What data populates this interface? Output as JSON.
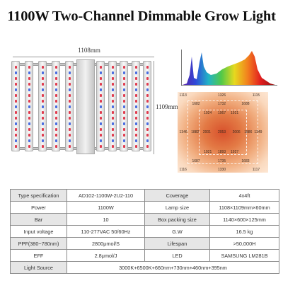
{
  "title": "1100W Two-Channel Dimmable Grow Light",
  "fixture": {
    "width_label": "1108mm",
    "height_label": "1109mm",
    "bar_count": 10
  },
  "spectrum": {
    "colors": [
      "#5a1fa5",
      "#2f49d8",
      "#22b3c6",
      "#52c948",
      "#e6d91f",
      "#f2821e",
      "#e21f1f",
      "#8e1010"
    ]
  },
  "ppfd": {
    "values": [
      [
        "1113",
        "1326",
        "1115"
      ],
      [
        "1682",
        "1732",
        "1688"
      ],
      [
        "1924",
        "1967",
        "1921"
      ],
      [
        "1346",
        "1882",
        "2001",
        "2053",
        "2006",
        "1886",
        "1349"
      ],
      [
        "1921",
        "1893",
        "1927"
      ],
      [
        "1687",
        "1735",
        "1683"
      ],
      [
        "1116",
        "1330",
        "1117"
      ]
    ]
  },
  "specs": {
    "rows": [
      [
        "Type specification",
        "AD102-1100W-2U2-110",
        "Coverage",
        "4x4ft"
      ],
      [
        "Power",
        "1100W",
        "Lamp size",
        "1108×1109mm×60mm"
      ],
      [
        "Bar",
        "10",
        "Box packing size",
        "1140×600×125mm"
      ],
      [
        "Input voltage",
        "110-277VAC 50/60Hz",
        "G.W",
        "16.5 kg"
      ],
      [
        "PPF(380~780nm)",
        "2800μmol/S",
        "Lifespan",
        ">50,000H"
      ],
      [
        "EFF",
        "2.8μmol/J",
        "LED",
        "SAMSUNG LM281B"
      ]
    ],
    "last_row": {
      "label": "Light Source",
      "value": "3000K+6500K+660nm+730nm+460nm+395nm"
    }
  }
}
